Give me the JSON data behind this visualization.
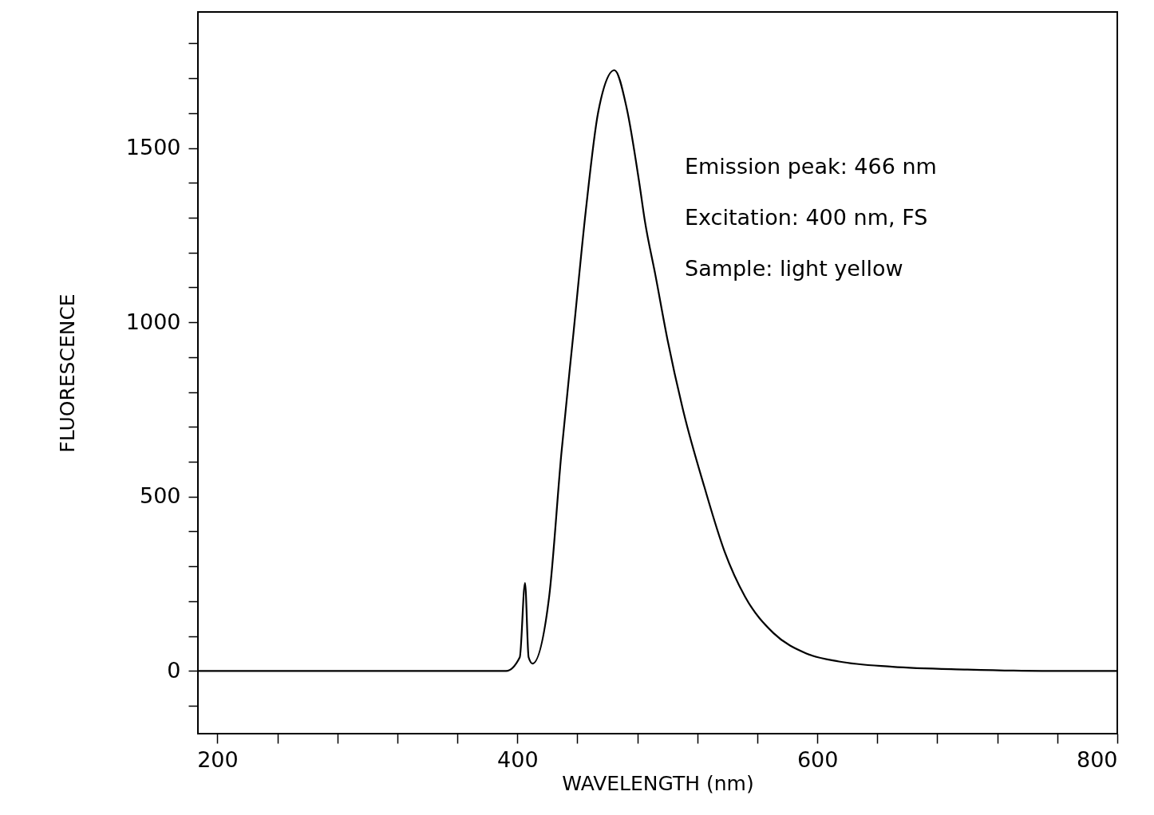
{
  "chart_data": {
    "type": "line",
    "xlabel": "WAVELENGTH (nm)",
    "ylabel": "FLUORESCENCE",
    "annotations": [
      "Emission peak: 466 nm",
      "Excitation: 400 nm, FS",
      "Sample: light yellow"
    ],
    "xlim": [
      187,
      800
    ],
    "ylim": [
      -180,
      1890
    ],
    "xticks": [
      200,
      {
        "value": 240,
        "label": null
      },
      {
        "value": 280,
        "label": null
      },
      {
        "value": 320,
        "label": null
      },
      {
        "value": 360,
        "label": null
      },
      400,
      {
        "value": 440,
        "label": null
      },
      {
        "value": 480,
        "label": null
      },
      {
        "value": 520,
        "label": null
      },
      {
        "value": 560,
        "label": null
      },
      600,
      {
        "value": 640,
        "label": null
      },
      {
        "value": 680,
        "label": null
      },
      {
        "value": 720,
        "label": null
      },
      {
        "value": 760,
        "label": null
      },
      800
    ],
    "yticks": [
      {
        "value": -100,
        "label": null
      },
      0,
      {
        "value": 100,
        "label": null
      },
      {
        "value": 200,
        "label": null
      },
      {
        "value": 300,
        "label": null
      },
      {
        "value": 400,
        "label": null
      },
      500,
      {
        "value": 600,
        "label": null
      },
      {
        "value": 700,
        "label": null
      },
      {
        "value": 800,
        "label": null
      },
      {
        "value": 900,
        "label": null
      },
      1000,
      {
        "value": 1100,
        "label": null
      },
      {
        "value": 1200,
        "label": null
      },
      {
        "value": 1300,
        "label": null
      },
      {
        "value": 1400,
        "label": null
      },
      1500,
      {
        "value": 1600,
        "label": null
      },
      {
        "value": 1700,
        "label": null
      },
      {
        "value": 1800,
        "label": null
      }
    ],
    "grid": false,
    "marker": "none",
    "line_style": "solid",
    "series": [
      {
        "color": "#000000",
        "x": [
          187,
          250,
          300,
          350,
          392.5,
          401.6,
          405.1,
          407.5,
          410.1,
          421.2,
          429.3,
          437.5,
          445.7,
          453.9,
          464.7,
          472.9,
          481.1,
          485.1,
          492,
          500.1,
          511,
          524.6,
          538.2,
          551.8,
          570.9,
          592.7,
          614.4,
          650,
          700,
          750,
          800
        ],
        "values": [
          0,
          0,
          0,
          0,
          0,
          39,
          252,
          39,
          21,
          213,
          622,
          973,
          1323,
          1603,
          1723,
          1614,
          1405,
          1288,
          1136,
          950,
          739,
          529,
          342,
          213,
          108,
          50,
          27,
          12,
          4,
          0,
          0
        ]
      }
    ]
  }
}
